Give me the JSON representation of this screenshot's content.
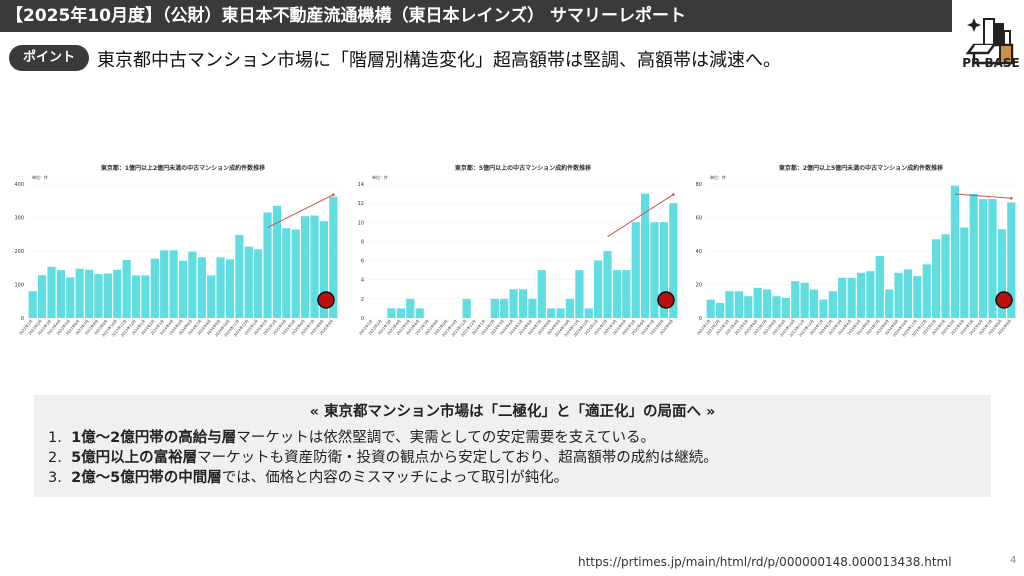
{
  "header": {
    "title": "【2025年10月度】（公財）東日本不動産流通機構（東日本レインズ） サマリーレポート"
  },
  "logo": {
    "text": "PR BASE"
  },
  "point": {
    "badge": "ポイント",
    "text": "東京都中古マンション市場に「階層別構造変化」超高額帯は堅調、高額帯は減速へ。"
  },
  "chart_data": [
    {
      "type": "bar",
      "title": "東京都：1億円以上2億円未満の中古マンション成約件数推移",
      "unit": "単位：件",
      "ylim": [
        0,
        400
      ],
      "yticks": [
        0,
        100,
        200,
        300,
        400
      ],
      "color": "#5fdde0",
      "trend": [
        [
          25,
          270
        ],
        [
          32,
          368
        ]
      ],
      "values": [
        80,
        128,
        153,
        143,
        121,
        147,
        144,
        131,
        133,
        144,
        173,
        127,
        127,
        177,
        202,
        202,
        171,
        198,
        181,
        127,
        181,
        175,
        248,
        213,
        205,
        315,
        335,
        268,
        264,
        304,
        306,
        289,
        362
      ]
    },
    {
      "type": "bar",
      "title": "東京都：5億円以上の中古マンション成約件数推移",
      "unit": "単位：件",
      "ylim": [
        0,
        14
      ],
      "yticks": [
        0,
        2,
        4,
        6,
        8,
        10,
        12,
        14
      ],
      "color": "#5fdde0",
      "trend": [
        [
          25,
          8.5
        ],
        [
          32,
          12.9
        ]
      ],
      "values": [
        0,
        0,
        1,
        1,
        2,
        1,
        0,
        0,
        0,
        0,
        2,
        0,
        0,
        2,
        2,
        3,
        3,
        2,
        5,
        1,
        1,
        2,
        5,
        1,
        6,
        7,
        5,
        5,
        10,
        13,
        10,
        10,
        12
      ]
    },
    {
      "type": "bar",
      "title": "東京都：2億円以上5億円未満の中古マンション成約件数推移",
      "unit": "単位：件",
      "ylim": [
        0,
        80
      ],
      "yticks": [
        0,
        20,
        40,
        60,
        80
      ],
      "color": "#5fdde0",
      "trend": [
        [
          26,
          74
        ],
        [
          32,
          71.5
        ]
      ],
      "values": [
        11,
        9,
        16,
        16,
        13,
        18,
        17,
        13,
        12,
        22,
        21,
        17,
        11,
        16,
        24,
        24,
        27,
        28,
        37,
        17,
        27,
        29,
        25,
        32,
        47,
        50,
        79,
        54,
        74,
        71,
        71,
        53,
        69
      ]
    }
  ],
  "categories": [
    "2023年1月",
    "2023年2月",
    "2023年3月",
    "2023年4月",
    "2023年5月",
    "2023年6月",
    "2023年7月",
    "2023年8月",
    "2023年9月",
    "2023年10月",
    "2023年11月",
    "2023年12月",
    "2024年1月",
    "2024年2月",
    "2024年3月",
    "2024年4月",
    "2024年5月",
    "2024年6月",
    "2024年7月",
    "2024年8月",
    "2024年9月",
    "2024年10月",
    "2024年11月",
    "2024年12月",
    "2025年1月",
    "2025年2月",
    "2025年3月",
    "2025年4月",
    "2025年5月",
    "2025年6月",
    "2025年7月",
    "2025年8月",
    "2025年9月"
  ],
  "summary": {
    "title": "« 東京都マンション市場は「二極化」と「適正化」の局面へ »",
    "items": [
      {
        "num": "1.",
        "bold": "1億～2億円帯の高給与層",
        "rest": "マーケットは依然堅調で、実需としての安定需要を支えている。"
      },
      {
        "num": "2.",
        "bold": "5億円以上の富裕層",
        "rest": "マーケットも資産防衛・投資の観点から安定しており、超高額帯の成約は継続。"
      },
      {
        "num": "3.",
        "bold": "2億～5億円帯の中間層",
        "rest": "では、価格と内容のミスマッチによって取引が鈍化。"
      }
    ]
  },
  "footer": {
    "url": "https://prtimes.jp/main/html/rd/p/000000148.000013438.html",
    "page": "4"
  }
}
